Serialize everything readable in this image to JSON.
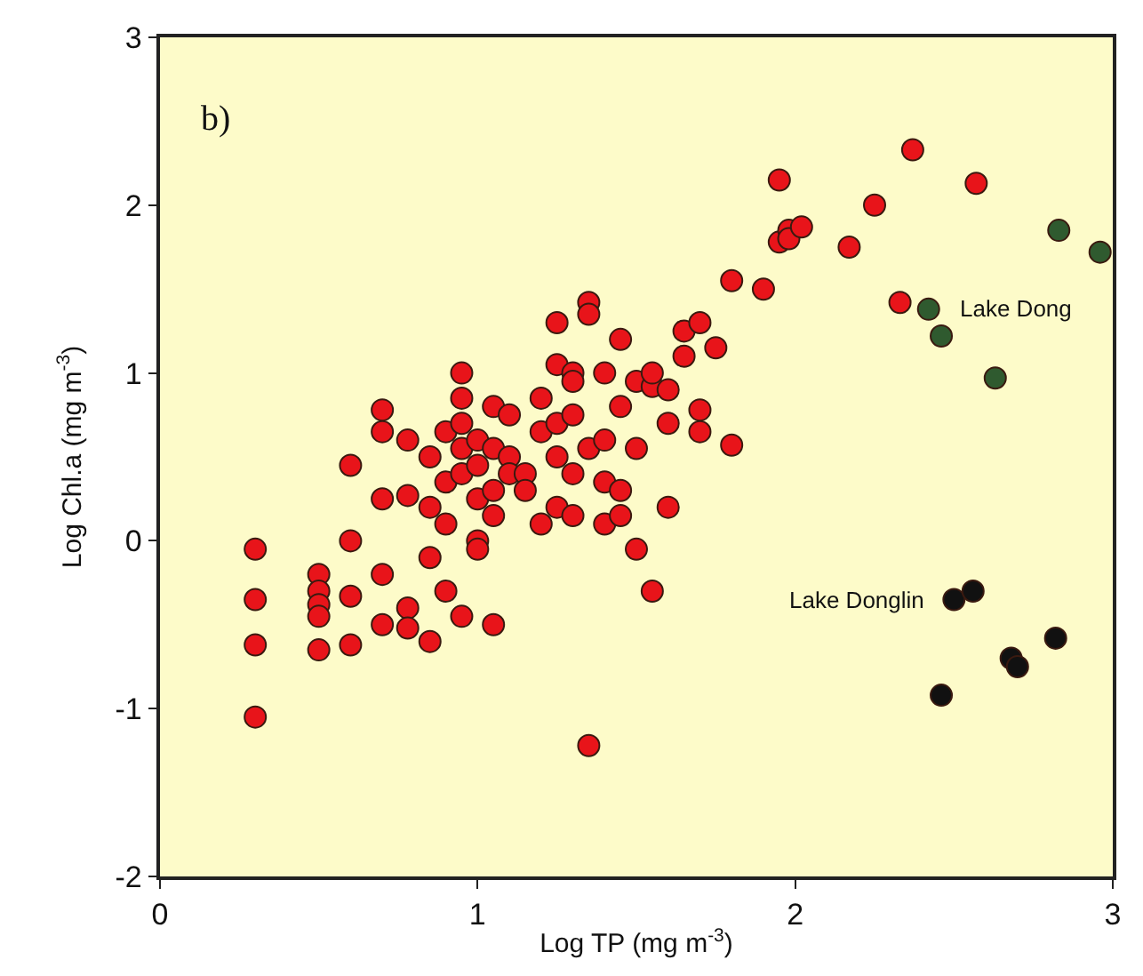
{
  "chart_data": {
    "type": "scatter",
    "xlabel": "Log TP (mg m$^{-3}$)",
    "ylabel": "Log Chl.a (mg m$^{-3}$)",
    "xlim": [
      0,
      3
    ],
    "xticks": [
      0,
      1,
      2,
      3
    ],
    "ylim": [
      -2,
      3
    ],
    "yticks": [
      -2,
      -1,
      0,
      1,
      2,
      3
    ],
    "grid": false,
    "marker": "circle",
    "annotations": [
      "b)",
      {
        "text": "Lake Dong",
        "x": 2.46,
        "y": 1.38
      },
      {
        "text": "Lake Donglin",
        "x": 2.46,
        "y": -0.35
      }
    ],
    "series": [
      {
        "color": "#e8141a",
        "x": [
          0.3,
          0.3,
          0.3,
          0.3,
          0.5,
          0.5,
          0.5,
          0.5,
          0.5,
          0.6,
          0.6,
          0.6,
          0.6,
          0.7,
          0.7,
          0.7,
          0.7,
          0.7,
          0.78,
          0.78,
          0.78,
          0.78,
          0.85,
          0.85,
          0.85,
          0.85,
          0.9,
          0.9,
          0.9,
          0.9,
          0.95,
          0.95,
          0.95,
          0.95,
          0.95,
          0.95,
          1.0,
          1.0,
          1.0,
          1.0,
          1.0,
          1.05,
          1.05,
          1.05,
          1.05,
          1.05,
          1.1,
          1.1,
          1.1,
          1.15,
          1.15,
          1.2,
          1.2,
          1.2,
          1.25,
          1.25,
          1.25,
          1.25,
          1.25,
          1.3,
          1.3,
          1.3,
          1.3,
          1.3,
          1.35,
          1.35,
          1.35,
          1.35,
          1.4,
          1.4,
          1.4,
          1.4,
          1.45,
          1.45,
          1.45,
          1.45,
          1.5,
          1.5,
          1.5,
          1.55,
          1.55,
          1.55,
          1.6,
          1.6,
          1.6,
          1.65,
          1.65,
          1.7,
          1.7,
          1.7,
          1.75,
          1.8,
          1.8,
          1.9,
          1.95,
          1.95,
          1.98,
          1.98,
          2.02,
          2.17,
          2.25,
          2.33,
          2.37,
          2.57
        ],
        "values": [
          -0.05,
          -0.35,
          -0.62,
          -1.05,
          -0.2,
          -0.3,
          -0.38,
          -0.45,
          -0.65,
          0.45,
          0.0,
          -0.33,
          -0.62,
          0.78,
          0.65,
          0.25,
          -0.2,
          -0.5,
          0.6,
          0.27,
          -0.4,
          -0.52,
          0.5,
          0.2,
          -0.1,
          -0.6,
          0.65,
          0.35,
          0.1,
          -0.3,
          1.0,
          0.85,
          0.7,
          0.55,
          0.4,
          -0.45,
          0.6,
          0.45,
          0.25,
          0.0,
          -0.05,
          0.8,
          0.55,
          0.3,
          0.15,
          -0.5,
          0.5,
          0.4,
          0.75,
          0.4,
          0.3,
          0.1,
          0.65,
          0.85,
          1.3,
          1.05,
          0.7,
          0.5,
          0.2,
          1.0,
          0.95,
          0.75,
          0.4,
          0.15,
          1.42,
          1.35,
          0.55,
          -1.22,
          1.0,
          0.6,
          0.35,
          0.1,
          1.2,
          0.8,
          0.3,
          0.15,
          0.95,
          0.55,
          -0.05,
          0.92,
          1.0,
          -0.3,
          0.9,
          0.7,
          0.2,
          1.25,
          1.1,
          1.3,
          0.78,
          0.65,
          1.15,
          1.55,
          0.57,
          1.5,
          1.78,
          2.15,
          1.85,
          1.8,
          1.87,
          1.75,
          2.0,
          1.42,
          2.33,
          2.13
        ]
      },
      {
        "color": "#2f5a2f",
        "x": [
          2.42,
          2.46,
          2.63,
          2.83,
          2.96
        ],
        "values": [
          1.38,
          1.22,
          0.97,
          1.85,
          1.72
        ]
      },
      {
        "color": "#111111",
        "x": [
          2.46,
          2.5,
          2.56,
          2.68,
          2.7,
          2.82
        ],
        "values": [
          -0.92,
          -0.35,
          -0.3,
          -0.7,
          -0.75,
          -0.58
        ]
      }
    ]
  }
}
